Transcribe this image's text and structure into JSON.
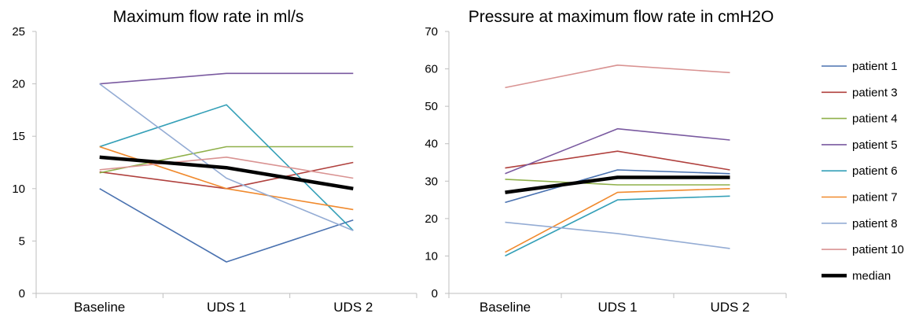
{
  "chart_data": [
    {
      "type": "line",
      "title": "Maximum flow rate in ml/s",
      "xlabel": "",
      "ylabel": "",
      "categories": [
        "Baseline",
        "UDS 1",
        "UDS 2"
      ],
      "ylim": [
        0,
        25
      ],
      "yticks": [
        0,
        5,
        10,
        15,
        20,
        25
      ],
      "grid": false,
      "series": [
        {
          "name": "patient 1",
          "color": "#4a72b0",
          "values": [
            10,
            3,
            7
          ]
        },
        {
          "name": "patient 3",
          "color": "#b0413e",
          "values": [
            11.6,
            10,
            12.5
          ]
        },
        {
          "name": "patient 4",
          "color": "#8fb04a",
          "values": [
            11.5,
            14,
            14
          ]
        },
        {
          "name": "patient 5",
          "color": "#7a5aa0",
          "values": [
            20,
            21,
            21
          ]
        },
        {
          "name": "patient 6",
          "color": "#35a0b8",
          "values": [
            14,
            18,
            6
          ]
        },
        {
          "name": "patient 7",
          "color": "#f08a2e",
          "values": [
            14,
            10,
            8
          ]
        },
        {
          "name": "patient 8",
          "color": "#94acd4",
          "values": [
            20,
            11,
            6
          ]
        },
        {
          "name": "patient 10",
          "color": "#d99392",
          "values": [
            11.8,
            13,
            11
          ]
        },
        {
          "name": "median",
          "color": "#000000",
          "values": [
            13,
            12,
            10
          ],
          "bold": true
        }
      ]
    },
    {
      "type": "line",
      "title": "Pressure at maximum flow rate in cmH2O",
      "xlabel": "",
      "ylabel": "",
      "categories": [
        "Baseline",
        "UDS 1",
        "UDS 2"
      ],
      "ylim": [
        0,
        70
      ],
      "yticks": [
        0,
        10,
        20,
        30,
        40,
        50,
        60,
        70
      ],
      "grid": false,
      "legend": "right",
      "series": [
        {
          "name": "patient 1",
          "color": "#4a72b0",
          "values": [
            24.3,
            33,
            32
          ]
        },
        {
          "name": "patient 3",
          "color": "#b0413e",
          "values": [
            33.5,
            38,
            33
          ]
        },
        {
          "name": "patient 4",
          "color": "#8fb04a",
          "values": [
            30.5,
            29,
            29
          ]
        },
        {
          "name": "patient 5",
          "color": "#7a5aa0",
          "values": [
            32,
            44,
            41
          ]
        },
        {
          "name": "patient 6",
          "color": "#35a0b8",
          "values": [
            10,
            25,
            26
          ]
        },
        {
          "name": "patient 7",
          "color": "#f08a2e",
          "values": [
            11,
            27,
            28
          ]
        },
        {
          "name": "patient 8",
          "color": "#94acd4",
          "values": [
            19,
            16,
            12
          ]
        },
        {
          "name": "patient 10",
          "color": "#d99392",
          "values": [
            55,
            61,
            59
          ]
        },
        {
          "name": "median",
          "color": "#000000",
          "values": [
            27,
            31,
            31
          ],
          "bold": true
        }
      ]
    }
  ]
}
